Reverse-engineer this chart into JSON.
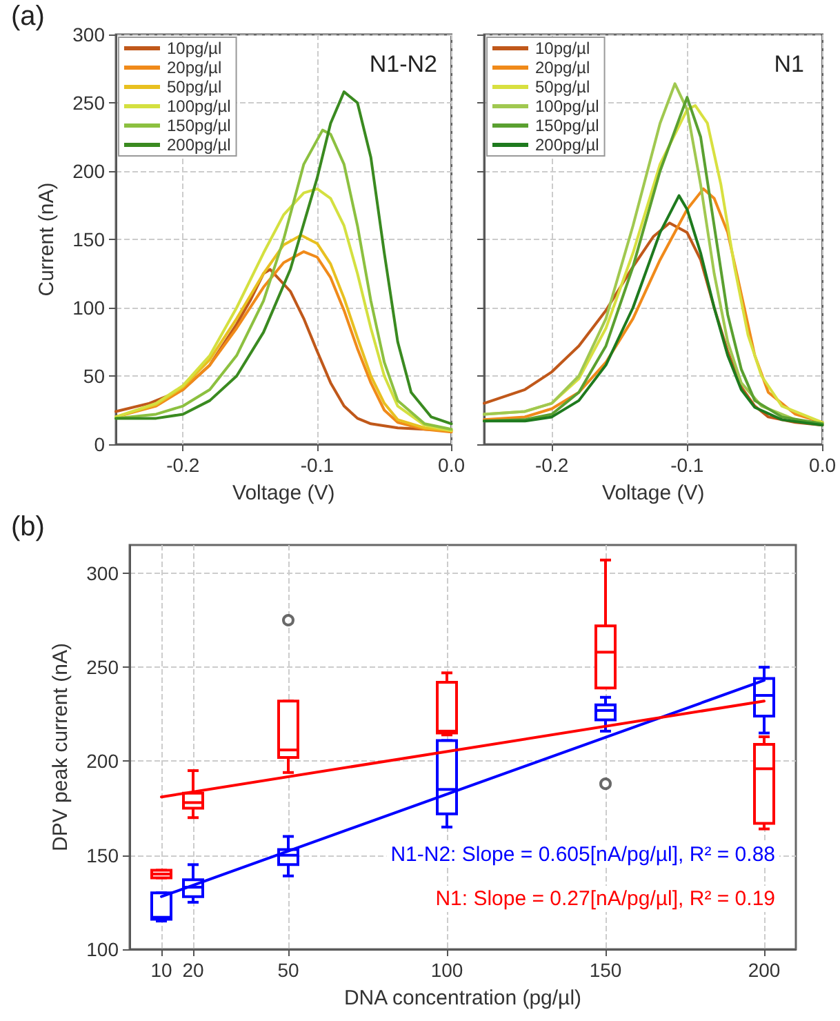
{
  "chart_data": [
    {
      "type": "line",
      "title": "N1-N2",
      "xlabel": "Voltage (V)",
      "ylabel": "Current (nA)",
      "annotations": [
        "(a)"
      ],
      "xlim": [
        -0.25,
        0
      ],
      "xticks": [
        -0.2,
        -0.1,
        {
          "value": 0,
          "label": "0.0"
        }
      ],
      "ylim": [
        0,
        300
      ],
      "yticks": [
        0,
        50,
        100,
        150,
        200,
        250,
        300
      ],
      "grid": true,
      "legend": "top left",
      "line_style": "solid",
      "series": [
        {
          "name": "10pg/µl",
          "color": "#c0581a",
          "x": [
            -0.25,
            -0.225,
            -0.2,
            -0.18,
            -0.16,
            -0.15,
            -0.14,
            -0.135,
            -0.12,
            -0.11,
            -0.1,
            -0.09,
            -0.08,
            -0.07,
            -0.06,
            -0.04,
            -0.02,
            0
          ],
          "values": [
            24,
            30,
            40,
            58,
            88,
            105,
            125,
            128,
            112,
            92,
            68,
            45,
            28,
            19,
            15,
            12,
            11,
            10
          ]
        },
        {
          "name": "20pg/µl",
          "color": "#f08a1a",
          "x": [
            -0.25,
            -0.22,
            -0.2,
            -0.18,
            -0.16,
            -0.14,
            -0.125,
            -0.11,
            -0.1,
            -0.09,
            -0.08,
            -0.07,
            -0.06,
            -0.05,
            -0.04,
            -0.02,
            0
          ],
          "values": [
            20,
            28,
            40,
            58,
            85,
            115,
            133,
            141,
            137,
            122,
            98,
            70,
            45,
            25,
            16,
            11,
            9
          ]
        },
        {
          "name": "50pg/µl",
          "color": "#e8c020",
          "x": [
            -0.25,
            -0.22,
            -0.2,
            -0.18,
            -0.16,
            -0.14,
            -0.125,
            -0.112,
            -0.1,
            -0.09,
            -0.08,
            -0.07,
            -0.06,
            -0.05,
            -0.04,
            -0.02,
            0
          ],
          "values": [
            20,
            29,
            42,
            62,
            92,
            125,
            146,
            153,
            147,
            132,
            107,
            78,
            50,
            30,
            18,
            12,
            10
          ]
        },
        {
          "name": "100pg/µl",
          "color": "#d4e040",
          "x": [
            -0.25,
            -0.22,
            -0.2,
            -0.18,
            -0.16,
            -0.14,
            -0.125,
            -0.11,
            -0.1,
            -0.09,
            -0.08,
            -0.07,
            -0.06,
            -0.05,
            -0.04,
            -0.02,
            0
          ],
          "values": [
            20,
            30,
            43,
            65,
            100,
            140,
            168,
            184,
            187,
            180,
            160,
            125,
            85,
            50,
            28,
            14,
            10
          ]
        },
        {
          "name": "150pg/µl",
          "color": "#8cc040",
          "x": [
            -0.25,
            -0.22,
            -0.2,
            -0.18,
            -0.16,
            -0.14,
            -0.125,
            -0.11,
            -0.096,
            -0.09,
            -0.08,
            -0.07,
            -0.06,
            -0.05,
            -0.04,
            -0.02,
            0
          ],
          "values": [
            19,
            22,
            28,
            40,
            65,
            105,
            150,
            205,
            230,
            227,
            205,
            160,
            105,
            60,
            32,
            15,
            11
          ]
        },
        {
          "name": "200pg/µl",
          "color": "#3a8a20",
          "x": [
            -0.25,
            -0.22,
            -0.2,
            -0.18,
            -0.16,
            -0.14,
            -0.12,
            -0.1,
            -0.09,
            -0.08,
            -0.07,
            -0.06,
            -0.05,
            -0.04,
            -0.03,
            -0.015,
            0
          ],
          "values": [
            19,
            19,
            22,
            32,
            50,
            82,
            128,
            195,
            235,
            258,
            250,
            210,
            140,
            75,
            38,
            20,
            15
          ]
        }
      ]
    },
    {
      "type": "line",
      "title": "N1",
      "xlabel": "Voltage (V)",
      "xlim": [
        -0.25,
        0
      ],
      "xticks": [
        -0.2,
        -0.1,
        {
          "value": 0,
          "label": "0.0"
        }
      ],
      "ylim": [
        0,
        300
      ],
      "yticks": [
        0,
        50,
        100,
        150,
        200,
        250,
        300
      ],
      "tick_labels": "x",
      "grid": true,
      "legend": "top left",
      "line_style": "solid",
      "series": [
        {
          "name": "10pg/µl",
          "color": "#c0581a",
          "x": [
            -0.25,
            -0.22,
            -0.2,
            -0.18,
            -0.16,
            -0.14,
            -0.125,
            -0.113,
            -0.1,
            -0.09,
            -0.08,
            -0.07,
            -0.06,
            -0.05,
            -0.04,
            -0.02,
            0
          ],
          "values": [
            30,
            40,
            53,
            72,
            98,
            130,
            152,
            162,
            155,
            135,
            100,
            68,
            42,
            28,
            20,
            16,
            14
          ]
        },
        {
          "name": "20pg/µl",
          "color": "#f08a1a",
          "x": [
            -0.25,
            -0.22,
            -0.2,
            -0.18,
            -0.16,
            -0.14,
            -0.12,
            -0.1,
            -0.088,
            -0.08,
            -0.07,
            -0.06,
            -0.05,
            -0.04,
            -0.02,
            0
          ],
          "values": [
            18,
            20,
            26,
            38,
            60,
            92,
            135,
            172,
            187,
            180,
            155,
            110,
            65,
            38,
            22,
            16
          ]
        },
        {
          "name": "50pg/µl",
          "color": "#d8e040",
          "x": [
            -0.25,
            -0.22,
            -0.2,
            -0.18,
            -0.16,
            -0.14,
            -0.12,
            -0.1,
            -0.094,
            -0.085,
            -0.075,
            -0.065,
            -0.055,
            -0.045,
            -0.03,
            0
          ],
          "values": [
            22,
            24,
            30,
            48,
            85,
            140,
            205,
            245,
            248,
            235,
            190,
            130,
            80,
            50,
            28,
            16
          ]
        },
        {
          "name": "100pg/µl",
          "color": "#a0c850",
          "x": [
            -0.25,
            -0.22,
            -0.2,
            -0.18,
            -0.16,
            -0.14,
            -0.12,
            -0.109,
            -0.1,
            -0.09,
            -0.08,
            -0.07,
            -0.06,
            -0.045,
            -0.02,
            0
          ],
          "values": [
            22,
            24,
            30,
            50,
            92,
            160,
            235,
            264,
            245,
            190,
            125,
            75,
            45,
            28,
            18,
            15
          ]
        },
        {
          "name": "150pg/µl",
          "color": "#5aa030",
          "x": [
            -0.25,
            -0.22,
            -0.2,
            -0.18,
            -0.16,
            -0.14,
            -0.12,
            -0.1,
            -0.09,
            -0.08,
            -0.07,
            -0.06,
            -0.05,
            -0.03,
            0
          ],
          "values": [
            17,
            18,
            22,
            38,
            72,
            130,
            200,
            254,
            225,
            160,
            95,
            55,
            32,
            20,
            15
          ]
        },
        {
          "name": "200pg/µl",
          "color": "#1e7a1e",
          "x": [
            -0.25,
            -0.22,
            -0.2,
            -0.18,
            -0.16,
            -0.14,
            -0.12,
            -0.106,
            -0.1,
            -0.09,
            -0.08,
            -0.07,
            -0.06,
            -0.05,
            -0.03,
            0
          ],
          "values": [
            17,
            17,
            20,
            32,
            58,
            100,
            155,
            182,
            172,
            140,
            100,
            65,
            40,
            27,
            18,
            14
          ]
        }
      ]
    },
    {
      "type": "box",
      "xlabel": "DNA concentration (pg/µl)",
      "ylabel": "DPV peak current (nA)",
      "annotations": [
        "(b)",
        "N1-N2: Slope = 0.605[nA/pg/µl], R² = 0.88",
        "N1: Slope = 0.27[nA/pg/µl], R² = 0.19"
      ],
      "x": [
        10,
        20,
        50,
        100,
        150,
        200
      ],
      "xlim": [
        0,
        210
      ],
      "xticks": [
        10,
        20,
        50,
        100,
        150,
        200
      ],
      "ylim": [
        100,
        315
      ],
      "yticks": [
        100,
        150,
        200,
        250,
        300
      ],
      "grid": true,
      "series": [
        {
          "color": "#0000ff",
          "boxes": [
            {
              "low": 115,
              "q1": 116,
              "median": 117,
              "q3": 130,
              "high": 130
            },
            {
              "low": 125,
              "q1": 128,
              "median": 133,
              "q3": 137,
              "high": 145
            },
            {
              "low": 139,
              "q1": 145,
              "median": 150,
              "q3": 153,
              "high": 160
            },
            {
              "low": 165,
              "q1": 172,
              "median": 185,
              "q3": 211,
              "high": 211
            },
            {
              "low": 216,
              "q1": 222,
              "median": 227,
              "q3": 230,
              "high": 234
            },
            {
              "low": 215,
              "q1": 224,
              "median": 235,
              "q3": 244,
              "high": 250
            }
          ]
        },
        {
          "color": "#ff0000",
          "boxes": [
            {
              "low": 138,
              "q1": 138,
              "median": 140,
              "q3": 142,
              "high": 142
            },
            {
              "low": 170,
              "q1": 175,
              "median": 178,
              "q3": 183,
              "high": 195
            },
            {
              "low": 194,
              "q1": 202,
              "median": 206,
              "q3": 232,
              "high": 232,
              "outliers": [
                275
              ]
            },
            {
              "low": 214,
              "q1": 215,
              "median": 216,
              "q3": 242,
              "high": 247
            },
            {
              "low": 239,
              "q1": 239,
              "median": 258,
              "q3": 272,
              "high": 307,
              "outliers": [
                188
              ]
            },
            {
              "low": 164,
              "q1": 167,
              "median": 196,
              "q3": 209,
              "high": 213
            }
          ]
        },
        {
          "type": "line",
          "color": "#0000ff",
          "x": [
            10,
            200
          ],
          "values": [
            128,
            243
          ]
        },
        {
          "type": "line",
          "color": "#ff0000",
          "x": [
            10,
            200
          ],
          "values": [
            181,
            232
          ]
        }
      ]
    }
  ]
}
